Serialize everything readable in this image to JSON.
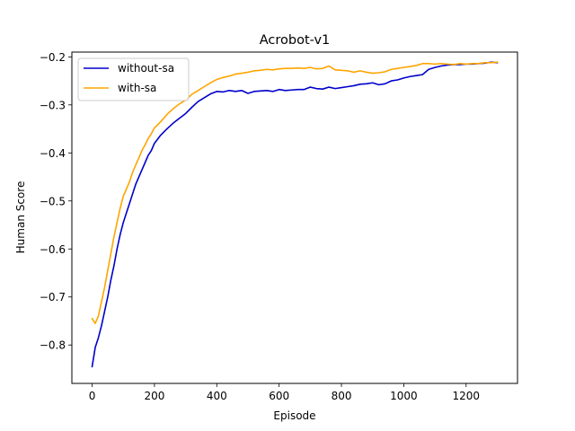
{
  "chart_data": {
    "type": "line",
    "title": "Acrobot-v1",
    "xlabel": "Episode",
    "ylabel": "Human Score",
    "xlim": [
      -65,
      1365
    ],
    "ylim": [
      -0.88,
      -0.19
    ],
    "xticks": [
      0,
      200,
      400,
      600,
      800,
      1000,
      1200
    ],
    "yticks": [
      -0.8,
      -0.7,
      -0.6,
      -0.5,
      -0.4,
      -0.3,
      -0.2
    ],
    "ytick_labels": [
      "−0.8",
      "−0.7",
      "−0.6",
      "−0.5",
      "−0.4",
      "−0.3",
      "−0.2"
    ],
    "grid": false,
    "legend_position": "upper-left",
    "series": [
      {
        "name": "without-sa",
        "color": "#0000cc",
        "x": [
          0,
          10,
          20,
          30,
          40,
          50,
          60,
          70,
          80,
          90,
          100,
          110,
          120,
          130,
          140,
          150,
          160,
          170,
          180,
          190,
          200,
          220,
          240,
          260,
          280,
          300,
          320,
          340,
          360,
          380,
          400,
          420,
          440,
          460,
          480,
          500,
          520,
          540,
          560,
          580,
          600,
          620,
          640,
          660,
          680,
          700,
          720,
          740,
          760,
          780,
          800,
          820,
          840,
          860,
          880,
          900,
          920,
          940,
          960,
          980,
          1000,
          1020,
          1040,
          1060,
          1080,
          1100,
          1120,
          1140,
          1160,
          1180,
          1200,
          1220,
          1240,
          1260,
          1280,
          1300
        ],
        "y": [
          -0.845,
          -0.805,
          -0.785,
          -0.76,
          -0.73,
          -0.7,
          -0.665,
          -0.635,
          -0.6,
          -0.57,
          -0.545,
          -0.525,
          -0.505,
          -0.485,
          -0.465,
          -0.45,
          -0.435,
          -0.42,
          -0.405,
          -0.395,
          -0.38,
          -0.363,
          -0.35,
          -0.338,
          -0.328,
          -0.318,
          -0.305,
          -0.293,
          -0.285,
          -0.277,
          -0.272,
          -0.273,
          -0.27,
          -0.272,
          -0.27,
          -0.276,
          -0.272,
          -0.271,
          -0.27,
          -0.272,
          -0.268,
          -0.27,
          -0.269,
          -0.268,
          -0.268,
          -0.263,
          -0.266,
          -0.267,
          -0.263,
          -0.266,
          -0.264,
          -0.262,
          -0.26,
          -0.257,
          -0.256,
          -0.254,
          -0.258,
          -0.256,
          -0.25,
          -0.248,
          -0.244,
          -0.241,
          -0.239,
          -0.237,
          -0.226,
          -0.222,
          -0.219,
          -0.217,
          -0.216,
          -0.216,
          -0.215,
          -0.215,
          -0.214,
          -0.213,
          -0.211,
          -0.212
        ]
      },
      {
        "name": "with-sa",
        "color": "#ffa500",
        "x": [
          0,
          10,
          20,
          30,
          40,
          50,
          60,
          70,
          80,
          90,
          100,
          110,
          120,
          130,
          140,
          150,
          160,
          170,
          180,
          190,
          200,
          220,
          240,
          260,
          280,
          300,
          320,
          340,
          360,
          380,
          400,
          420,
          440,
          460,
          480,
          500,
          520,
          540,
          560,
          580,
          600,
          620,
          640,
          660,
          680,
          700,
          720,
          740,
          760,
          780,
          800,
          820,
          840,
          860,
          880,
          900,
          920,
          940,
          960,
          980,
          1000,
          1020,
          1040,
          1060,
          1080,
          1100,
          1120,
          1140,
          1160,
          1180,
          1200,
          1220,
          1240,
          1260,
          1280,
          1300
        ],
        "y": [
          -0.745,
          -0.755,
          -0.74,
          -0.71,
          -0.68,
          -0.645,
          -0.61,
          -0.575,
          -0.545,
          -0.515,
          -0.49,
          -0.475,
          -0.46,
          -0.44,
          -0.425,
          -0.41,
          -0.395,
          -0.383,
          -0.37,
          -0.36,
          -0.348,
          -0.335,
          -0.32,
          -0.308,
          -0.298,
          -0.29,
          -0.278,
          -0.27,
          -0.262,
          -0.254,
          -0.247,
          -0.243,
          -0.24,
          -0.236,
          -0.234,
          -0.232,
          -0.229,
          -0.228,
          -0.226,
          -0.227,
          -0.225,
          -0.224,
          -0.224,
          -0.223,
          -0.224,
          -0.222,
          -0.225,
          -0.224,
          -0.219,
          -0.227,
          -0.228,
          -0.229,
          -0.232,
          -0.229,
          -0.232,
          -0.234,
          -0.233,
          -0.231,
          -0.226,
          -0.224,
          -0.222,
          -0.22,
          -0.218,
          -0.214,
          -0.214,
          -0.215,
          -0.214,
          -0.215,
          -0.216,
          -0.214,
          -0.215,
          -0.214,
          -0.214,
          -0.212,
          -0.212,
          -0.211
        ]
      }
    ]
  }
}
